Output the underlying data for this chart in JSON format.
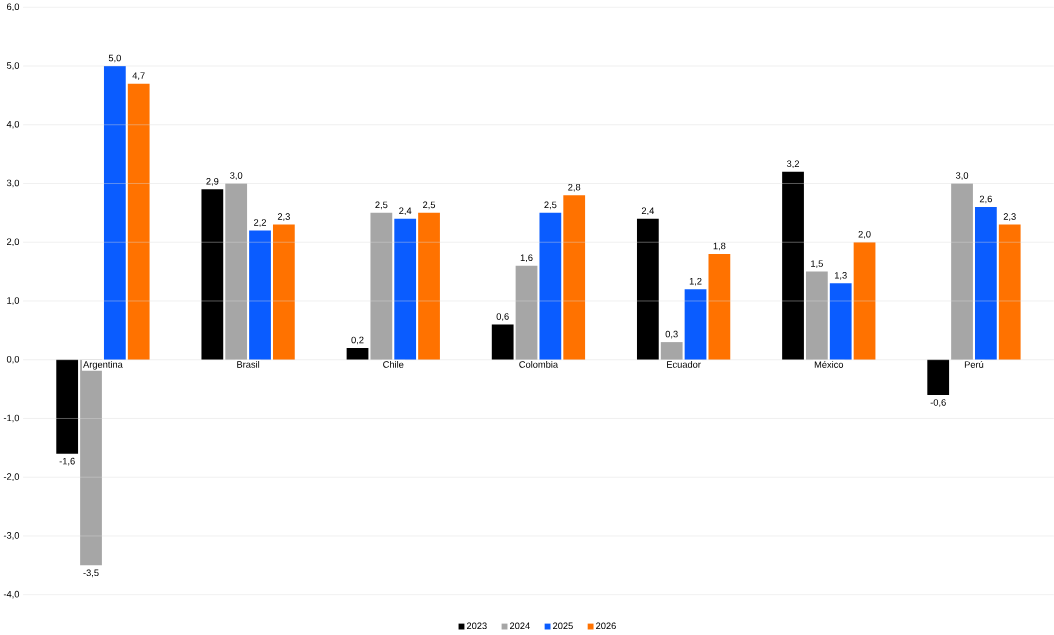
{
  "chart_data": {
    "type": "bar",
    "categories": [
      "Argentina",
      "Brasil",
      "Chile",
      "Colombia",
      "Ecuador",
      "México",
      "Perú"
    ],
    "series": [
      {
        "name": "2023",
        "color": "#000000",
        "values": [
          -1.6,
          2.9,
          0.2,
          0.6,
          2.4,
          3.2,
          -0.6
        ],
        "value_labels": [
          "-1,6",
          "2,9",
          "0,2",
          "0,6",
          "2,4",
          "3,2",
          "-0,6"
        ]
      },
      {
        "name": "2024",
        "color": "#a6a6a6",
        "values": [
          -3.5,
          3.0,
          2.5,
          1.6,
          0.3,
          1.5,
          3.0
        ],
        "value_labels": [
          "-3,5",
          "3,0",
          "2,5",
          "1,6",
          "0,3",
          "1,5",
          "3,0"
        ]
      },
      {
        "name": "2025",
        "color": "#0a5cff",
        "values": [
          5.0,
          2.2,
          2.4,
          2.5,
          1.2,
          1.3,
          2.6
        ],
        "value_labels": [
          "5,0",
          "2,2",
          "2,4",
          "2,5",
          "1,2",
          "1,3",
          "2,6"
        ]
      },
      {
        "name": "2026",
        "color": "#ff7200",
        "values": [
          4.7,
          2.3,
          2.5,
          2.8,
          1.8,
          2.0,
          2.3
        ],
        "value_labels": [
          "4,7",
          "2,3",
          "2,5",
          "2,8",
          "1,8",
          "2,0",
          "2,3"
        ]
      }
    ],
    "ylim": [
      -4,
      6
    ],
    "yticks": [
      {
        "value": -4,
        "label": "-4,0"
      },
      {
        "value": -3,
        "label": "-3,0"
      },
      {
        "value": -2,
        "label": "-2,0"
      },
      {
        "value": -1,
        "label": "-1,0"
      },
      {
        "value": 0,
        "label": "0,0"
      },
      {
        "value": 1,
        "label": "1,0"
      },
      {
        "value": 2,
        "label": "2,0"
      },
      {
        "value": 3,
        "label": "3,0"
      },
      {
        "value": 4,
        "label": "4,0"
      },
      {
        "value": 5,
        "label": "5,0"
      },
      {
        "value": 6,
        "label": "6,0"
      }
    ],
    "grid": "y",
    "legend": "bottom"
  }
}
